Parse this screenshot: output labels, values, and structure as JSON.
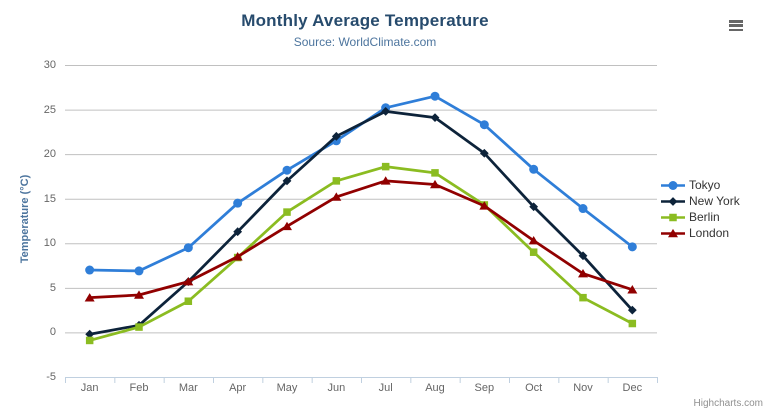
{
  "header": {
    "title": "Monthly Average Temperature",
    "subtitle": "Source: WorldClimate.com"
  },
  "chart_data": {
    "type": "line",
    "categories": [
      "Jan",
      "Feb",
      "Mar",
      "Apr",
      "May",
      "Jun",
      "Jul",
      "Aug",
      "Sep",
      "Oct",
      "Nov",
      "Dec"
    ],
    "series": [
      {
        "name": "Tokyo",
        "color": "#2f7ed8",
        "marker": "circle",
        "values": [
          7.0,
          6.9,
          9.5,
          14.5,
          18.2,
          21.5,
          25.2,
          26.5,
          23.3,
          18.3,
          13.9,
          9.6
        ]
      },
      {
        "name": "New York",
        "color": "#0d233a",
        "marker": "diamond",
        "values": [
          -0.2,
          0.8,
          5.7,
          11.3,
          17.0,
          22.0,
          24.8,
          24.1,
          20.1,
          14.1,
          8.6,
          2.5
        ]
      },
      {
        "name": "Berlin",
        "color": "#8bbc21",
        "marker": "square",
        "values": [
          -0.9,
          0.6,
          3.5,
          8.4,
          13.5,
          17.0,
          18.6,
          17.9,
          14.3,
          9.0,
          3.9,
          1.0
        ]
      },
      {
        "name": "London",
        "color": "#910000",
        "marker": "triangle",
        "values": [
          3.9,
          4.2,
          5.7,
          8.5,
          11.9,
          15.2,
          17.0,
          16.6,
          14.2,
          10.3,
          6.6,
          4.8
        ]
      }
    ],
    "title": "Monthly Average Temperature",
    "subtitle": "Source: WorldClimate.com",
    "xlabel": "",
    "ylabel": "Temperature (°C)",
    "ylim": [
      -5,
      30
    ],
    "yticks": [
      -5,
      0,
      5,
      10,
      15,
      20,
      25,
      30
    ],
    "grid": true,
    "legend_position": "right"
  },
  "colors": {
    "background": "#ffffff",
    "grid": "#c0c0c0",
    "axis_line": "#c0d0e0",
    "title": "#274b6d",
    "subtitle": "#4d759e",
    "axis_title": "#4d759e",
    "tick_label": "#666666",
    "legend_text": "#333333",
    "credits": "#909090",
    "menu_icon": "#666666"
  },
  "toolbar": {
    "context_menu_icon": "hamburger-icon"
  },
  "credits": {
    "text": "Highcharts.com"
  }
}
